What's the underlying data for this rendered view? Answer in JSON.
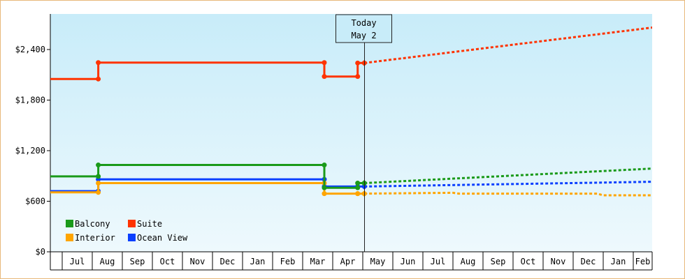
{
  "chart_data": {
    "type": "line",
    "title": "",
    "xlabel": "",
    "ylabel": "",
    "ylim": [
      0,
      2400
    ],
    "y_ticks": [
      {
        "value": 0,
        "label": "$0"
      },
      {
        "value": 600,
        "label": "$600"
      },
      {
        "value": 1200,
        "label": "$1,200"
      },
      {
        "value": 1800,
        "label": "$1,800"
      },
      {
        "value": 2400,
        "label": "$2,400"
      }
    ],
    "x_ticks": [
      "Jul",
      "Aug",
      "Sep",
      "Oct",
      "Nov",
      "Dec",
      "Jan",
      "Feb",
      "Mar",
      "Apr",
      "May",
      "Jun",
      "Jul",
      "Aug",
      "Sep",
      "Oct",
      "Nov",
      "Dec",
      "Jan",
      "Feb"
    ],
    "x_range_months": [
      0,
      20
    ],
    "today_marker": {
      "line1": "Today",
      "line2": "May 2",
      "x_month": 10.05
    },
    "grid": false,
    "legend_position": "bottom-left",
    "background_gradient": [
      "#c8ecf9",
      "#eef9fd"
    ],
    "series": [
      {
        "name": "Balcony",
        "color": "#1a9a1a",
        "history": [
          [
            -0.4,
            895
          ],
          [
            1.2,
            895
          ],
          [
            1.2,
            1030
          ],
          [
            8.72,
            1030
          ],
          [
            8.72,
            760
          ],
          [
            9.83,
            760
          ],
          [
            9.83,
            815
          ],
          [
            10.05,
            815
          ]
        ],
        "forecast": [
          [
            10.05,
            815
          ],
          [
            20.3,
            1000
          ]
        ]
      },
      {
        "name": "Suite",
        "color": "#ff3300",
        "history": [
          [
            -0.4,
            2050
          ],
          [
            1.2,
            2050
          ],
          [
            1.2,
            2245
          ],
          [
            8.72,
            2245
          ],
          [
            8.72,
            2080
          ],
          [
            9.83,
            2080
          ],
          [
            9.83,
            2240
          ],
          [
            10.05,
            2240
          ]
        ],
        "forecast": [
          [
            10.05,
            2240
          ],
          [
            20.3,
            2690
          ]
        ]
      },
      {
        "name": "Interior",
        "color": "#ffa500",
        "history": [
          [
            -0.4,
            705
          ],
          [
            1.2,
            705
          ],
          [
            1.2,
            815
          ],
          [
            8.72,
            815
          ],
          [
            8.72,
            690
          ],
          [
            9.83,
            690
          ],
          [
            9.83,
            690
          ],
          [
            10.05,
            690
          ]
        ],
        "forecast": [
          [
            10.05,
            690
          ],
          [
            13.0,
            700
          ],
          [
            13.2,
            690
          ],
          [
            17.8,
            690
          ],
          [
            18.0,
            670
          ],
          [
            20.3,
            670
          ]
        ]
      },
      {
        "name": "Ocean View",
        "color": "#0a3fff",
        "history": [
          [
            -0.4,
            720
          ],
          [
            1.2,
            720
          ],
          [
            1.2,
            860
          ],
          [
            8.72,
            860
          ],
          [
            8.72,
            775
          ],
          [
            9.83,
            775
          ],
          [
            9.83,
            775
          ],
          [
            10.05,
            775
          ]
        ],
        "forecast": [
          [
            10.05,
            775
          ],
          [
            20.3,
            835
          ]
        ]
      }
    ]
  }
}
